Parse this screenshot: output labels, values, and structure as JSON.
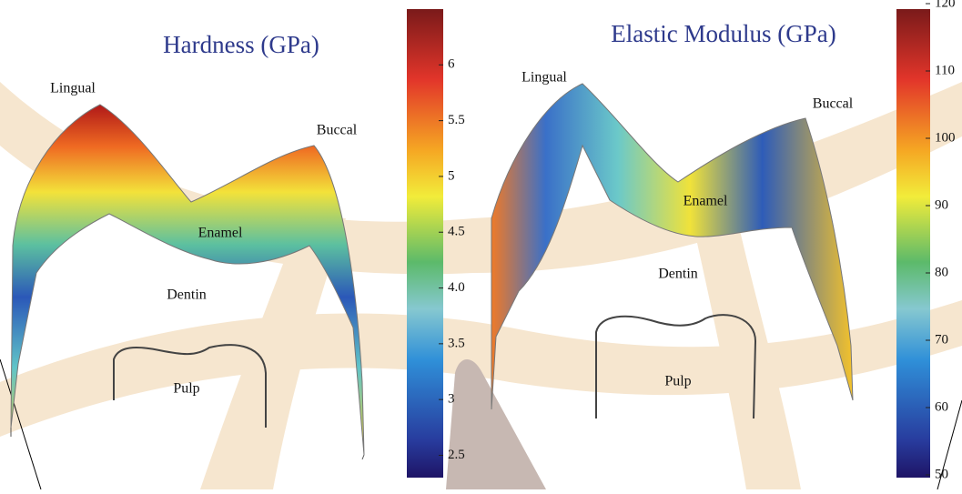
{
  "panels": [
    {
      "title": "Hardness (GPa)",
      "labels": {
        "lingual": "Lingual",
        "buccal": "Buccal",
        "enamel": "Enamel",
        "dentin": "Dentin",
        "pulp": "Pulp"
      },
      "colorbar": {
        "lim": [
          2.3,
          6.5
        ],
        "ticks": [
          6,
          5.5,
          5,
          4.5,
          {
            "value": 4,
            "label": "4.0"
          },
          3.5,
          3,
          2.5
        ]
      }
    },
    {
      "title": "Elastic Modulus (GPa)",
      "labels": {
        "lingual": "Lingual",
        "buccal": "Buccal",
        "enamel": "Enamel",
        "dentin": "Dentin",
        "pulp": "Pulp"
      },
      "colorbar": {
        "lim": [
          50,
          120
        ],
        "ticks": [
          120,
          110,
          100,
          90,
          80,
          70,
          60,
          50
        ]
      }
    }
  ]
}
